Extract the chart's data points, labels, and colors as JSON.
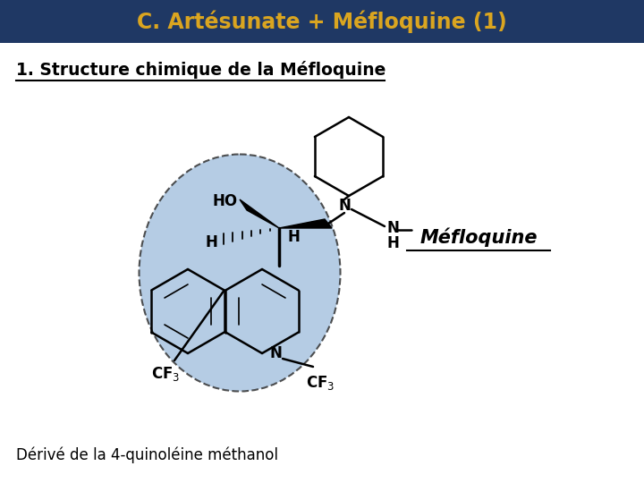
{
  "title": "C. Artésunate + Méfloquine (1)",
  "title_color": "#DAA520",
  "header_bg": "#1F3864",
  "heading": "1. Structure chimique de la Méfloquine",
  "label_mefloquine": "Méfloquine",
  "footer": "Dérivé de la 4-quinoléine méthanol",
  "bg_color": "#FFFFFF",
  "text_color": "#000000",
  "circle_color": "#A8C4E0",
  "circle_edge": "#333333"
}
